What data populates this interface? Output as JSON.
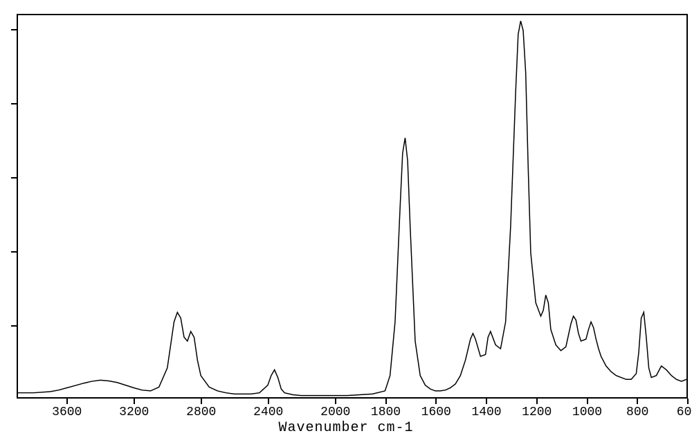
{
  "chart": {
    "type": "line",
    "xlabel": "Wavenumber cm-1",
    "label_fontsize": 20,
    "tick_fontsize": 18,
    "background_color": "#ffffff",
    "line_color": "#000000",
    "border_color": "#000000",
    "line_width": 1.5,
    "xlim": [
      3900,
      600
    ],
    "ylim": [
      0,
      1.0
    ],
    "x_reversed": true,
    "xticks": [
      3600,
      3200,
      2800,
      2400,
      2000,
      1800,
      1600,
      1400,
      1200,
      1000,
      800,
      600
    ],
    "ytick_count": 5,
    "series": [
      {
        "x": [
          3900,
          3800,
          3700,
          3650,
          3600,
          3550,
          3500,
          3450,
          3400,
          3350,
          3300,
          3250,
          3200,
          3150,
          3100,
          3050,
          3000,
          2980,
          2960,
          2940,
          2920,
          2900,
          2880,
          2860,
          2840,
          2820,
          2800,
          2750,
          2700,
          2650,
          2600,
          2550,
          2500,
          2450,
          2400,
          2380,
          2360,
          2340,
          2320,
          2300,
          2250,
          2200,
          2150,
          2100,
          2050,
          2000,
          1950,
          1900,
          1850,
          1800,
          1780,
          1760,
          1740,
          1730,
          1720,
          1710,
          1700,
          1680,
          1660,
          1640,
          1620,
          1600,
          1580,
          1560,
          1540,
          1520,
          1500,
          1480,
          1460,
          1450,
          1440,
          1420,
          1400,
          1390,
          1380,
          1360,
          1340,
          1320,
          1300,
          1280,
          1270,
          1260,
          1250,
          1240,
          1230,
          1220,
          1200,
          1180,
          1170,
          1160,
          1150,
          1140,
          1120,
          1100,
          1080,
          1070,
          1060,
          1050,
          1040,
          1030,
          1020,
          1000,
          990,
          980,
          970,
          960,
          950,
          940,
          920,
          900,
          880,
          860,
          840,
          820,
          800,
          790,
          780,
          770,
          760,
          750,
          740,
          720,
          700,
          680,
          660,
          640,
          620,
          600
        ],
        "y": [
          0.015,
          0.015,
          0.018,
          0.022,
          0.028,
          0.034,
          0.04,
          0.045,
          0.048,
          0.046,
          0.042,
          0.035,
          0.028,
          0.022,
          0.02,
          0.03,
          0.08,
          0.14,
          0.2,
          0.225,
          0.21,
          0.16,
          0.15,
          0.175,
          0.16,
          0.1,
          0.06,
          0.03,
          0.02,
          0.015,
          0.012,
          0.012,
          0.012,
          0.015,
          0.035,
          0.06,
          0.075,
          0.055,
          0.025,
          0.015,
          0.01,
          0.008,
          0.008,
          0.008,
          0.008,
          0.008,
          0.008,
          0.01,
          0.012,
          0.02,
          0.06,
          0.2,
          0.5,
          0.64,
          0.68,
          0.62,
          0.45,
          0.15,
          0.06,
          0.035,
          0.025,
          0.02,
          0.02,
          0.022,
          0.028,
          0.038,
          0.06,
          0.1,
          0.155,
          0.17,
          0.155,
          0.11,
          0.115,
          0.16,
          0.175,
          0.14,
          0.13,
          0.2,
          0.45,
          0.8,
          0.95,
          0.985,
          0.96,
          0.85,
          0.6,
          0.38,
          0.25,
          0.215,
          0.23,
          0.27,
          0.25,
          0.18,
          0.14,
          0.125,
          0.135,
          0.165,
          0.195,
          0.215,
          0.205,
          0.17,
          0.15,
          0.155,
          0.18,
          0.2,
          0.185,
          0.155,
          0.13,
          0.11,
          0.085,
          0.07,
          0.06,
          0.055,
          0.05,
          0.05,
          0.065,
          0.12,
          0.21,
          0.225,
          0.16,
          0.08,
          0.055,
          0.06,
          0.085,
          0.075,
          0.06,
          0.05,
          0.045,
          0.05
        ]
      }
    ]
  }
}
